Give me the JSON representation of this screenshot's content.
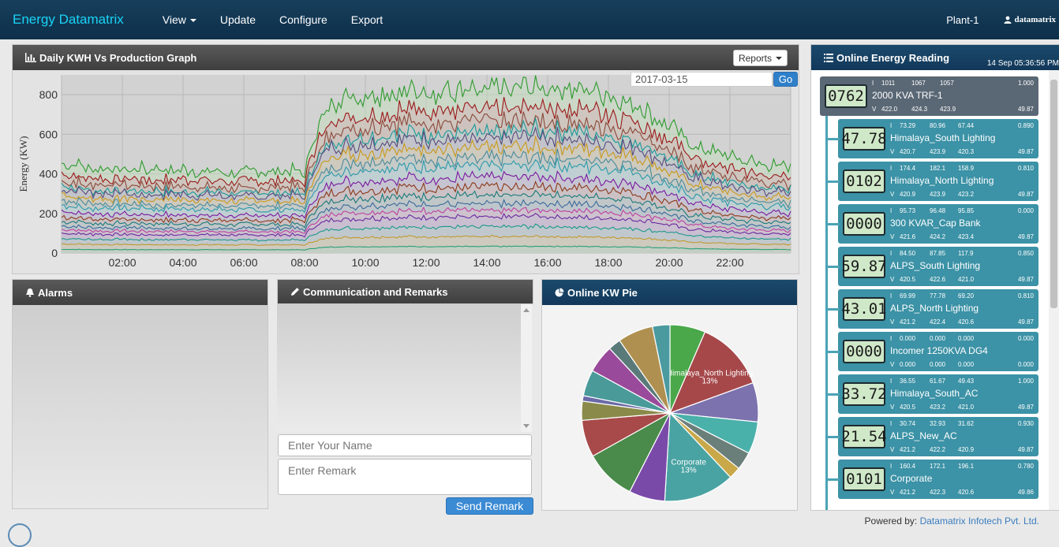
{
  "navbar": {
    "brand": "Energy Datamatrix",
    "items": [
      "View",
      "Update",
      "Configure",
      "Export"
    ],
    "plant": "Plant-1",
    "user": "datamatrix"
  },
  "kwh_panel": {
    "title": "Daily KWH Vs Production Graph",
    "reports_label": "Reports",
    "date_value": "2017-03-15",
    "go_label": "Go"
  },
  "chart_data": {
    "type": "area",
    "ylabel": "Energy (KW)",
    "ylim": [
      0,
      900
    ],
    "yticks": [
      0,
      200,
      400,
      600,
      800
    ],
    "xticks": [
      "02:00",
      "04:00",
      "06:00",
      "08:00",
      "10:00",
      "12:00",
      "14:00",
      "16:00",
      "18:00",
      "20:00",
      "22:00"
    ],
    "x": [
      0,
      1,
      2,
      3,
      4,
      5,
      6,
      7,
      7.6,
      8,
      8.3,
      8.8,
      9,
      10,
      11,
      12,
      13,
      14,
      15,
      16,
      17,
      18,
      19,
      20,
      20.5,
      21,
      22,
      23,
      24
    ],
    "stacked_totals": [
      460,
      430,
      430,
      420,
      420,
      415,
      410,
      410,
      420,
      400,
      600,
      740,
      780,
      790,
      820,
      820,
      820,
      820,
      830,
      840,
      820,
      800,
      760,
      640,
      580,
      530,
      480,
      450,
      430
    ],
    "grid": true
  },
  "alarms_panel": {
    "title": "Alarms"
  },
  "remarks_panel": {
    "title": "Communication and Remarks",
    "name_placeholder": "Enter Your Name",
    "remark_placeholder": "Enter Remark",
    "send_label": "Send Remark"
  },
  "pie_panel": {
    "title": "Online KW Pie",
    "slices": [
      {
        "label": "",
        "pct": 6.5,
        "color": "#4aa84a"
      },
      {
        "label": "Himalaya_North Lighting",
        "pct": 13,
        "color": "#a6484a"
      },
      {
        "label": "",
        "pct": 7.2,
        "color": "#7b72ae"
      },
      {
        "label": "",
        "pct": 5.9,
        "color": "#4ab0aa"
      },
      {
        "label": "",
        "pct": 3.3,
        "color": "#6b7f7a"
      },
      {
        "label": "",
        "pct": 2.2,
        "color": "#c9a84a"
      },
      {
        "label": "Corporate",
        "pct": 13,
        "color": "#4aa3a3"
      },
      {
        "label": "",
        "pct": 6.6,
        "color": "#7a4aa8"
      },
      {
        "label": "",
        "pct": 9.4,
        "color": "#4a8a4a"
      },
      {
        "label": "",
        "pct": 6.8,
        "color": "#a84a4a"
      },
      {
        "label": "",
        "pct": 3.5,
        "color": "#8a8a4a"
      },
      {
        "label": "",
        "pct": 1.0,
        "color": "#6a6aa8"
      },
      {
        "label": "",
        "pct": 4.8,
        "color": "#4a9a9a"
      },
      {
        "label": "",
        "pct": 5.1,
        "color": "#9a4a9a"
      },
      {
        "label": "",
        "pct": 2.3,
        "color": "#5a7a7a"
      },
      {
        "label": "",
        "pct": 6.5,
        "color": "#b09050"
      },
      {
        "label": "",
        "pct": 3.2,
        "color": "#4a9aa0"
      }
    ]
  },
  "reading_panel": {
    "title": "Online Energy Reading",
    "datetime": "14 Sep 05:36:56 PM",
    "i_label": "I",
    "v_label": "V",
    "main": {
      "lcd": "0762",
      "name": "2000 KVA TRF-1",
      "i": [
        "1011",
        "1067",
        "1057"
      ],
      "pf": "1.000",
      "v": [
        "422.0",
        "424.3",
        "423.9"
      ],
      "hz": "49.87"
    },
    "cards": [
      {
        "lcd": "47.78",
        "name": "Himalaya_South Lighting",
        "i": [
          "73.29",
          "80.96",
          "67.44"
        ],
        "pf": "0.890",
        "v": [
          "420.7",
          "423.9",
          "420.3"
        ],
        "hz": "49.87"
      },
      {
        "lcd": "0102",
        "name": "Himalaya_North Lighting",
        "i": [
          "174.4",
          "182.1",
          "158.9"
        ],
        "pf": "0.810",
        "v": [
          "420.9",
          "423.9",
          "423.2"
        ],
        "hz": "49.87"
      },
      {
        "lcd": "0000",
        "name": "300 KVAR_Cap Bank",
        "i": [
          "95.73",
          "96.48",
          "95.85"
        ],
        "pf": "0.000",
        "v": [
          "421.6",
          "424.2",
          "423.4"
        ],
        "hz": "49.87"
      },
      {
        "lcd": "59.87",
        "name": "ALPS_South Lighting",
        "i": [
          "84.50",
          "87.85",
          "117.9"
        ],
        "pf": "0.850",
        "v": [
          "420.5",
          "422.6",
          "421.0"
        ],
        "hz": "49.87"
      },
      {
        "lcd": "43.01",
        "name": "ALPS_North Lighting",
        "i": [
          "69.99",
          "77.78",
          "69.20"
        ],
        "pf": "0.810",
        "v": [
          "421.2",
          "422.4",
          "420.6"
        ],
        "hz": "49.87"
      },
      {
        "lcd": "0000",
        "name": "Incomer 1250KVA DG4",
        "i": [
          "0.000",
          "0.000",
          "0.000"
        ],
        "pf": "0.000",
        "v": [
          "0.000",
          "0.000",
          "0.000"
        ],
        "hz": "0.000"
      },
      {
        "lcd": "33.72",
        "name": "Himalaya_South_AC",
        "i": [
          "36.55",
          "61.67",
          "49.43"
        ],
        "pf": "1.000",
        "v": [
          "420.5",
          "423.2",
          "421.0"
        ],
        "hz": "49.87"
      },
      {
        "lcd": "21.54",
        "name": "ALPS_New_AC",
        "i": [
          "30.74",
          "32.93",
          "31.62"
        ],
        "pf": "0.930",
        "v": [
          "421.2",
          "422.2",
          "420.9"
        ],
        "hz": "49.87"
      },
      {
        "lcd": "0101",
        "name": "Corporate",
        "i": [
          "160.4",
          "172.1",
          "196.1"
        ],
        "pf": "0.780",
        "v": [
          "421.2",
          "422.3",
          "420.6"
        ],
        "hz": "49.86"
      }
    ]
  },
  "footer": {
    "prefix": "Powered by:",
    "company": "Datamatrix Infotech Pvt. Ltd."
  },
  "colors": {
    "navbar": "#0d2f4a",
    "brand": "#19d3f5",
    "card": "#3c92a6",
    "lcd": "#cfe8c8"
  }
}
